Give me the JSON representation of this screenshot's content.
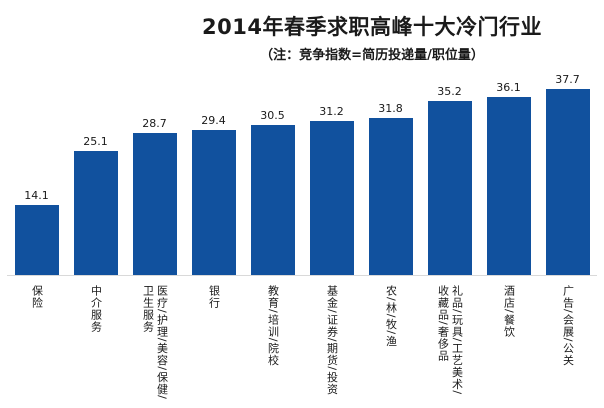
{
  "header": {
    "title": "2014年春季求职高峰十大冷门行业",
    "subtitle": "（注：竞争指数=简历投递量/职位量）"
  },
  "colors": {
    "bar": "#11519e",
    "axis_line": "#d9d9d9",
    "text": "#1a1a1a",
    "background": "#ffffff"
  },
  "chart_data": {
    "type": "bar",
    "title": "2014年春季求职高峰十大冷门行业",
    "subtitle": "（注：竞争指数=简历投递量/职位量）",
    "categories": [
      "保险",
      "中介服务",
      "医疗/护理/美容/保健/卫生服务",
      "银行",
      "教育/培训/院校",
      "基金/证券/期货/投资",
      "农/林/牧/渔",
      "礼品/玩具/工艺美术/收藏品/奢侈品",
      "酒店/餐饮",
      "广告/会展/公关"
    ],
    "values": [
      14.1,
      25.1,
      28.7,
      29.4,
      30.5,
      31.2,
      31.8,
      35.2,
      36.1,
      37.7
    ],
    "xlabel": "",
    "ylabel": "",
    "ylim": [
      0,
      40
    ],
    "grid": false,
    "legend": false,
    "data_labels": true,
    "bar_color": "#11519e",
    "category_label_orientation": "vertical",
    "sort_order": "ascending"
  }
}
